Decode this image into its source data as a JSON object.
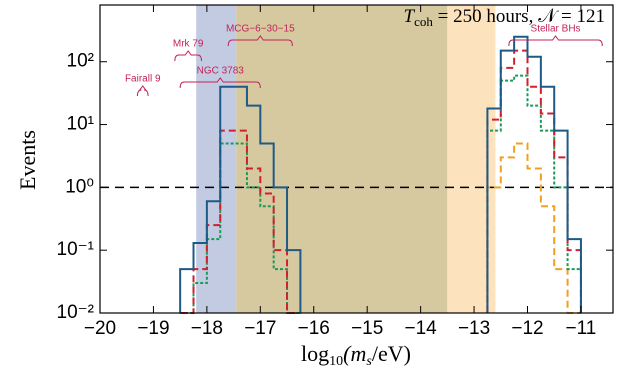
{
  "chart_data": {
    "type": "step-histogram",
    "ylabel": "Events",
    "xlabel_parts": [
      "log",
      "10",
      "(m",
      "s",
      "/eV)"
    ],
    "header_parts": [
      "T",
      "coh",
      " = 250 hours,  𝒩 = 121"
    ],
    "log_y": true,
    "xlim": [
      -20,
      -10.4
    ],
    "ylim": [
      0.01,
      800
    ],
    "xticks": [
      {
        "value": -20,
        "label": "−20"
      },
      {
        "value": -19,
        "label": "−19"
      },
      {
        "value": -18,
        "label": "−18"
      },
      {
        "value": -17,
        "label": "−17"
      },
      {
        "value": -16,
        "label": "−16"
      },
      {
        "value": -15,
        "label": "−15"
      },
      {
        "value": -14,
        "label": "−14"
      },
      {
        "value": -13,
        "label": "−13"
      },
      {
        "value": -12,
        "label": "−12"
      },
      {
        "value": -11,
        "label": "−11"
      }
    ],
    "yticks": [
      {
        "value": 0.01,
        "label": "10⁻²"
      },
      {
        "value": 0.1,
        "label": "10⁻¹"
      },
      {
        "value": 1,
        "label": "10⁰"
      },
      {
        "value": 10,
        "label": "10¹"
      },
      {
        "value": 100,
        "label": "10²"
      }
    ],
    "threshold": 1,
    "regions": [
      {
        "x": [
          -18.2,
          -17.45
        ],
        "color": "#c3cbe3"
      },
      {
        "x": [
          -17.45,
          -13.5
        ],
        "color": "#d6c9a0"
      },
      {
        "x": [
          -13.5,
          -12.6
        ],
        "color": "#fde3bd"
      }
    ],
    "bins": [
      -18.5,
      -18.25,
      -18.0,
      -17.75,
      -17.5,
      -17.25,
      -17.0,
      -16.75,
      -16.5,
      -16.25
    ],
    "bins2": [
      -12.75,
      -12.5,
      -12.25,
      -12.0,
      -11.75,
      -11.5,
      -11.25,
      -11.0
    ],
    "series": [
      {
        "color": "#1d5a85",
        "dash": "",
        "values": [
          0.05,
          0.13,
          0.6,
          40,
          40,
          20,
          5,
          1,
          0.1
        ],
        "values2": [
          18,
          150,
          250,
          120,
          40,
          8,
          0.15
        ]
      },
      {
        "color": "#d0202e",
        "dash": "7,4",
        "values": [
          0.01,
          0.05,
          0.25,
          8,
          8,
          2,
          0.8,
          0.1,
          0.01
        ],
        "values2": [
          12,
          80,
          150,
          40,
          15,
          3,
          0.1
        ]
      },
      {
        "color": "#1a9a5a",
        "dash": "3,2",
        "values": [
          0.01,
          0.03,
          0.15,
          5,
          5,
          1,
          0.5,
          0.05,
          0.01
        ],
        "values2": [
          8,
          50,
          60,
          20,
          8,
          1,
          0.05
        ]
      },
      {
        "color": "#f0a020",
        "dash": "7,4",
        "values": [
          null,
          null,
          null,
          null,
          null,
          null,
          null,
          null,
          null
        ],
        "values2": [
          1,
          3,
          5,
          2,
          0.5,
          0.05,
          0.01
        ]
      }
    ],
    "annotations": [
      {
        "text": "Fairall 9",
        "x": [
          -19.3,
          -19.1
        ],
        "level": 3
      },
      {
        "text": "Mrk 79",
        "x": [
          -18.6,
          -18.1
        ],
        "level": 1
      },
      {
        "text": "MCG−6−30−15",
        "x": [
          -17.6,
          -16.4
        ],
        "level": 0
      },
      {
        "text": "NGC 3783",
        "x": [
          -18.5,
          -17.0
        ],
        "level": 2
      },
      {
        "text": "Stellar BHs",
        "x": [
          -12.35,
          -10.6
        ],
        "level": 0
      }
    ]
  }
}
